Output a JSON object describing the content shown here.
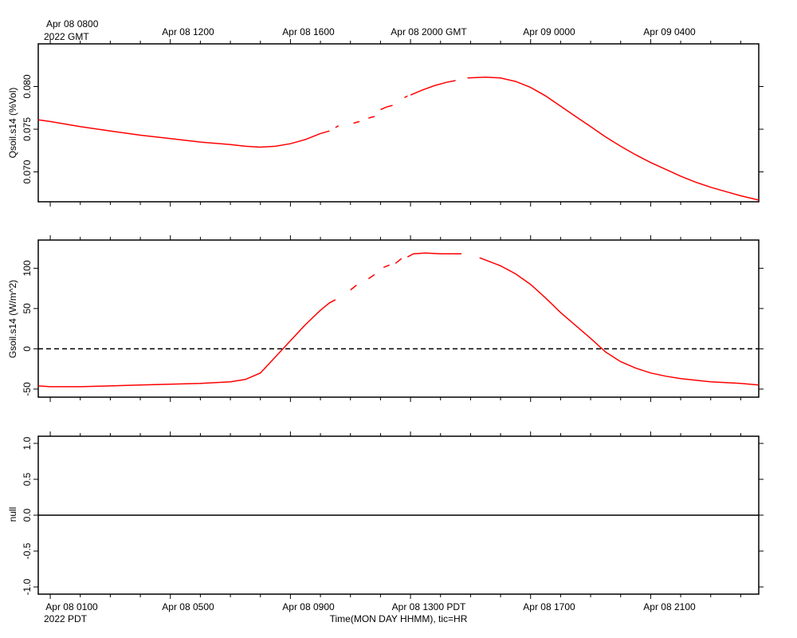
{
  "top_axis": {
    "first_label_line1": "Apr 08 0800",
    "first_label_line2": "2022 GMT",
    "labels": [
      "Apr 08 1200",
      "Apr 08 1600",
      "Apr 08 2000 GMT",
      "Apr 09 0000",
      "Apr 09 0400"
    ]
  },
  "bottom_axis": {
    "labels": [
      "Apr 08 0100",
      "Apr 08 0500",
      "Apr 08 0900",
      "Apr 08 1300 PDT",
      "Apr 08 1700",
      "Apr 08 2100"
    ],
    "year_label": "2022 PDT",
    "title": "Time(MON DAY HHMM), tic=HR"
  },
  "colors": {
    "series": "#ff0000",
    "axis": "#000000"
  },
  "chart_data": [
    {
      "type": "line",
      "ylabel": "Qsoil.s14 (%Vol)",
      "x_unit": "hours since Apr 08 0000 PDT",
      "xlim": [
        0.6,
        24.6
      ],
      "ylim": [
        0.0665,
        0.085
      ],
      "yticks": [
        "0.070",
        "0.075",
        "0.080"
      ],
      "series": [
        {
          "segments": [
            [
              [
                0.6,
                0.0761
              ],
              [
                1.0,
                0.0759
              ],
              [
                2.0,
                0.0753
              ],
              [
                3.0,
                0.0748
              ],
              [
                4.0,
                0.0743
              ],
              [
                5.0,
                0.0739
              ],
              [
                6.0,
                0.0735
              ],
              [
                7.0,
                0.0732
              ],
              [
                7.5,
                0.073
              ],
              [
                8.0,
                0.0729
              ],
              [
                8.5,
                0.073
              ],
              [
                9.0,
                0.0733
              ],
              [
                9.5,
                0.0738
              ],
              [
                10.0,
                0.0745
              ],
              [
                10.3,
                0.0748
              ]
            ],
            [
              [
                10.5,
                0.0752
              ],
              [
                10.6,
                0.0754
              ]
            ],
            [
              [
                11.1,
                0.0757
              ],
              [
                11.3,
                0.0759
              ]
            ],
            [
              [
                11.6,
                0.0763
              ],
              [
                11.8,
                0.0765
              ]
            ],
            [
              [
                12.0,
                0.0773
              ],
              [
                12.2,
                0.0776
              ],
              [
                12.4,
                0.0778
              ]
            ],
            [
              [
                12.8,
                0.0787
              ],
              [
                12.9,
                0.0789
              ]
            ],
            [
              [
                13.0,
                0.079
              ],
              [
                13.4,
                0.0796
              ],
              [
                13.8,
                0.0801
              ],
              [
                14.2,
                0.0805
              ],
              [
                14.5,
                0.0807
              ]
            ],
            [
              [
                14.9,
                0.081
              ],
              [
                15.5,
                0.0811
              ],
              [
                16.0,
                0.081
              ],
              [
                16.5,
                0.0806
              ],
              [
                17.0,
                0.0799
              ],
              [
                17.5,
                0.0789
              ],
              [
                18.0,
                0.0777
              ],
              [
                18.5,
                0.0765
              ],
              [
                19.0,
                0.0753
              ],
              [
                19.5,
                0.0741
              ],
              [
                20.0,
                0.073
              ],
              [
                20.5,
                0.072
              ],
              [
                21.0,
                0.0711
              ],
              [
                21.5,
                0.0703
              ],
              [
                22.0,
                0.0695
              ],
              [
                22.5,
                0.0688
              ],
              [
                23.0,
                0.0682
              ],
              [
                23.5,
                0.0677
              ],
              [
                24.0,
                0.0672
              ],
              [
                24.6,
                0.0667
              ]
            ]
          ]
        }
      ]
    },
    {
      "type": "line",
      "ylabel": "Gsoil.s14 (W/m^2)",
      "x_unit": "hours since Apr 08 0000 PDT",
      "xlim": [
        0.6,
        24.6
      ],
      "ylim": [
        -60,
        135
      ],
      "yticks": [
        "-50",
        "0",
        "50",
        "100"
      ],
      "reference_line": 0,
      "series": [
        {
          "segments": [
            [
              [
                0.6,
                -46
              ],
              [
                1.0,
                -47
              ],
              [
                2.0,
                -47
              ],
              [
                3.0,
                -46
              ],
              [
                4.0,
                -45
              ],
              [
                5.0,
                -44
              ],
              [
                6.0,
                -43
              ],
              [
                7.0,
                -41
              ],
              [
                7.5,
                -38
              ],
              [
                8.0,
                -30
              ],
              [
                8.5,
                -10
              ],
              [
                9.0,
                10
              ],
              [
                9.5,
                30
              ],
              [
                10.0,
                48
              ],
              [
                10.3,
                57
              ],
              [
                10.5,
                61
              ]
            ],
            [
              [
                11.0,
                73
              ],
              [
                11.2,
                79
              ]
            ],
            [
              [
                11.6,
                87
              ],
              [
                11.8,
                92
              ]
            ],
            [
              [
                12.1,
                101
              ],
              [
                12.3,
                104
              ]
            ],
            [
              [
                12.5,
                106
              ],
              [
                12.7,
                112
              ]
            ],
            [
              [
                12.9,
                114
              ],
              [
                13.1,
                118
              ],
              [
                13.5,
                119
              ],
              [
                14.0,
                118
              ],
              [
                14.7,
                118
              ]
            ],
            [
              [
                15.3,
                113
              ],
              [
                16.0,
                103
              ],
              [
                16.5,
                93
              ],
              [
                17.0,
                80
              ],
              [
                17.5,
                63
              ],
              [
                18.0,
                45
              ],
              [
                18.5,
                29
              ],
              [
                19.0,
                13
              ],
              [
                19.5,
                -4
              ],
              [
                20.0,
                -16
              ],
              [
                20.5,
                -24
              ],
              [
                21.0,
                -30
              ],
              [
                21.5,
                -34
              ],
              [
                22.0,
                -37
              ],
              [
                22.5,
                -39
              ],
              [
                23.0,
                -41
              ],
              [
                24.0,
                -43
              ],
              [
                24.6,
                -45
              ]
            ]
          ]
        }
      ]
    },
    {
      "type": "line",
      "ylabel": "null",
      "x_unit": "hours since Apr 08 0000 PDT",
      "xlim": [
        0.6,
        24.6
      ],
      "ylim": [
        -1.1,
        1.1
      ],
      "yticks": [
        "-1.0",
        "-0.5",
        "0.0",
        "0.5",
        "1.0"
      ],
      "series": [
        {
          "segments": [
            [
              [
                0.6,
                0.0
              ],
              [
                24.6,
                0.0
              ]
            ]
          ]
        }
      ]
    }
  ]
}
